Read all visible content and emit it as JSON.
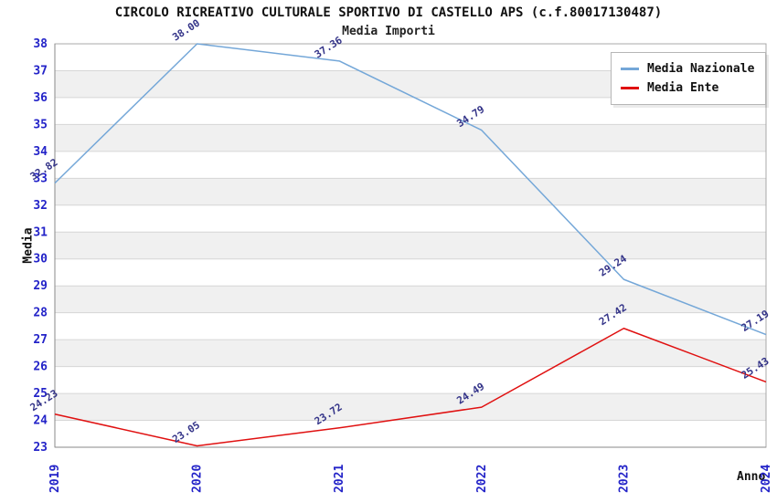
{
  "title": "CIRCOLO RICREATIVO CULTURALE SPORTIVO DI CASTELLO APS (c.f.80017130487)",
  "subtitle": "Media Importi",
  "chart_data": {
    "type": "line",
    "title": "CIRCOLO RICREATIVO CULTURALE SPORTIVO DI CASTELLO APS (c.f.80017130487)",
    "subtitle": "Media Importi",
    "xlabel": "Anno",
    "ylabel": "Media",
    "x": [
      2019,
      2020,
      2021,
      2022,
      2023,
      2024
    ],
    "series": [
      {
        "name": "Media Nazionale",
        "color": "#74a7d8",
        "values": [
          32.82,
          38.0,
          37.36,
          34.79,
          29.24,
          27.19
        ]
      },
      {
        "name": "Media Ente",
        "color": "#e01010",
        "values": [
          24.23,
          23.05,
          23.72,
          24.49,
          27.42,
          25.43
        ]
      }
    ],
    "ylim": [
      23,
      38
    ],
    "yticks": [
      23,
      24,
      25,
      26,
      27,
      28,
      29,
      30,
      31,
      32,
      33,
      34,
      35,
      36,
      37,
      38
    ],
    "grid": true,
    "bands_alternating": true,
    "legend_position": "top-right",
    "value_labels_rotated": true,
    "colors": {
      "tick_label": "#2323c8",
      "value_label": "#333388",
      "band_gray": "#f0f0f0",
      "grid_line": "#d6d6d6",
      "plot_border": "#a8a8a8",
      "axis_line": "#8a8a8a",
      "text": "#111111"
    }
  }
}
